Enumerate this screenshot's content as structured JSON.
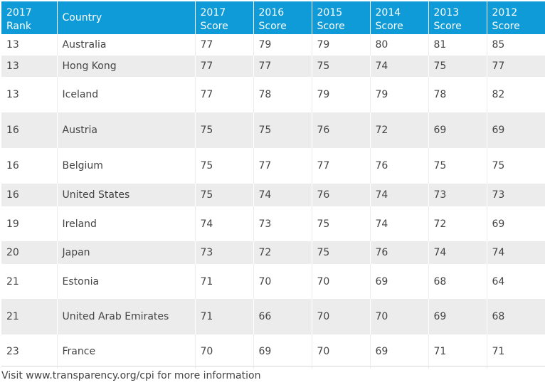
{
  "table": {
    "headers": [
      [
        "2017",
        "Rank"
      ],
      [
        "Country"
      ],
      [
        "2017",
        "Score"
      ],
      [
        "2016",
        "Score"
      ],
      [
        "2015",
        "Score"
      ],
      [
        "2014",
        "Score"
      ],
      [
        "2013",
        "Score"
      ],
      [
        "2012",
        "Score"
      ]
    ],
    "rows": [
      [
        "13",
        "Australia",
        "77",
        "79",
        "79",
        "80",
        "81",
        "85"
      ],
      [
        "13",
        "Hong Kong",
        "77",
        "77",
        "75",
        "74",
        "75",
        "77"
      ],
      [
        "13",
        "Iceland",
        "77",
        "78",
        "79",
        "79",
        "78",
        "82"
      ],
      [
        "16",
        "Austria",
        "75",
        "75",
        "76",
        "72",
        "69",
        "69"
      ],
      [
        "16",
        "Belgium",
        "75",
        "77",
        "77",
        "76",
        "75",
        "75"
      ],
      [
        "16",
        "United States",
        "75",
        "74",
        "76",
        "74",
        "73",
        "73"
      ],
      [
        "19",
        "Ireland",
        "74",
        "73",
        "75",
        "74",
        "72",
        "69"
      ],
      [
        "20",
        "Japan",
        "73",
        "72",
        "75",
        "76",
        "74",
        "74"
      ],
      [
        "21",
        "Estonia",
        "71",
        "70",
        "70",
        "69",
        "68",
        "64"
      ],
      [
        "21",
        "United Arab Emirates",
        "71",
        "66",
        "70",
        "70",
        "69",
        "68"
      ],
      [
        "23",
        "France",
        "70",
        "69",
        "70",
        "69",
        "71",
        "71"
      ]
    ]
  },
  "footer": {
    "text": "Visit www.transparency.org/cpi for more information"
  },
  "colors": {
    "header_bg": "#0f9bd8",
    "row_alt_bg": "#ececec",
    "text": "#444444"
  }
}
